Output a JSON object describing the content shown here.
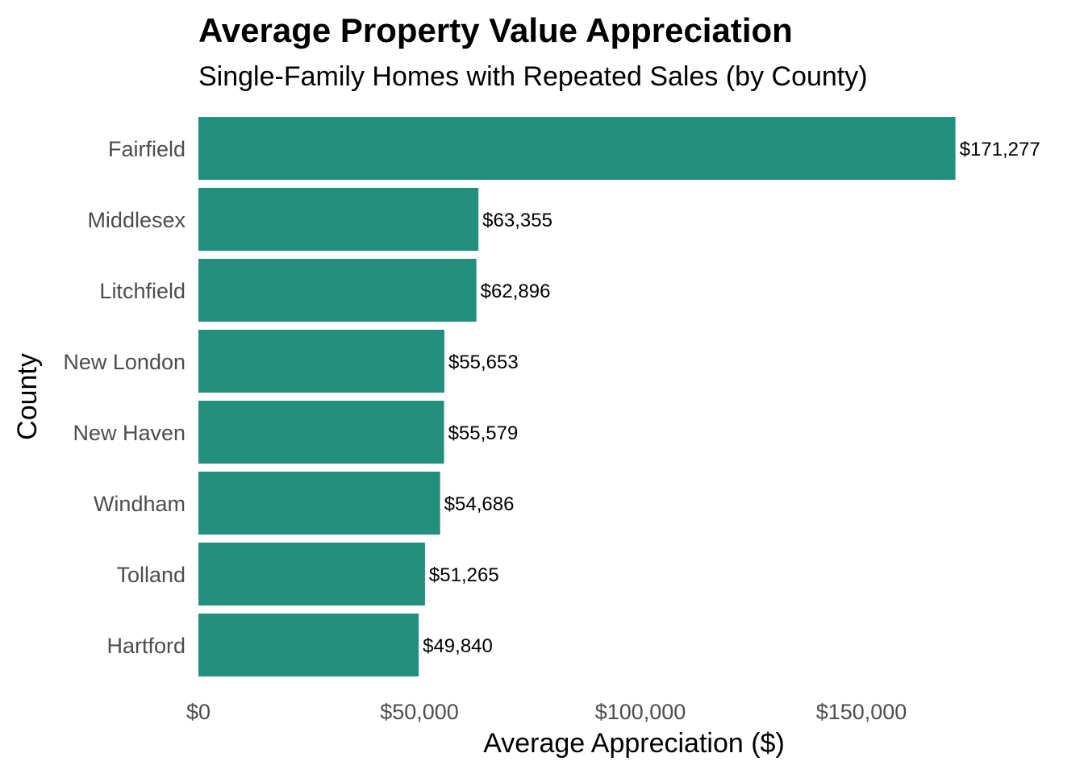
{
  "chart_data": {
    "type": "bar",
    "orientation": "horizontal",
    "title": "Average Property Value Appreciation",
    "subtitle": "Single-Family Homes with Repeated Sales (by County)",
    "xlabel": "Average Appreciation ($)",
    "ylabel": "County",
    "categories": [
      "Fairfield",
      "Middlesex",
      "Litchfield",
      "New London",
      "New Haven",
      "Windham",
      "Tolland",
      "Hartford"
    ],
    "values": [
      171277,
      63355,
      62896,
      55653,
      55579,
      54686,
      51265,
      49840
    ],
    "data_labels": [
      "$171,277",
      "$63,355",
      "$62,896",
      "$55,653",
      "$55,579",
      "$54,686",
      "$51,265",
      "$49,840"
    ],
    "x_ticks": [
      0,
      50000,
      100000,
      150000
    ],
    "x_tick_labels": [
      "$0",
      "$50,000",
      "$100,000",
      "$150,000"
    ],
    "xlim": [
      0,
      175000
    ],
    "grid": false,
    "bar_color": "#238F7D"
  }
}
